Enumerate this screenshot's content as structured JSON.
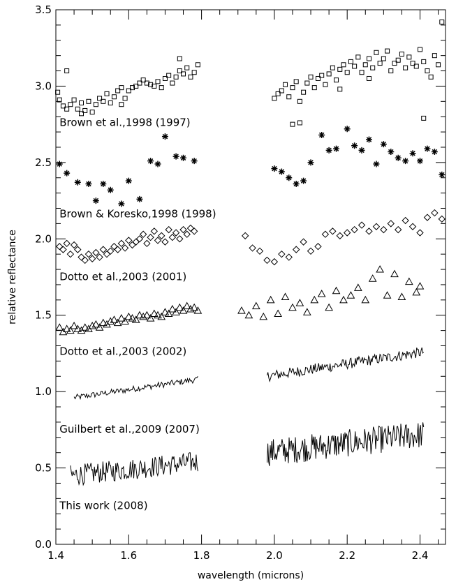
{
  "chart_data": {
    "type": "scatter",
    "title": "",
    "xlabel": "wavelength (microns)",
    "ylabel": "relative reflectance",
    "xlim": [
      1.4,
      2.47
    ],
    "ylim": [
      0.0,
      3.5
    ],
    "grid": false,
    "legend": "none",
    "x_ticks": [
      "1.4",
      "1.6",
      "1.8",
      "2.0",
      "2.2",
      "2.4"
    ],
    "y_ticks": [
      "0.0",
      "0.5",
      "1.0",
      "1.5",
      "2.0",
      "2.5",
      "3.0",
      "3.5"
    ],
    "annotations": [
      {
        "text": "Brown et al.,1998 (1997)",
        "x": 1.41,
        "y": 2.74
      },
      {
        "text": "Brown & Koresko,1998 (1998)",
        "x": 1.41,
        "y": 2.14
      },
      {
        "text": "Dotto et al.,2003 (2001)",
        "x": 1.41,
        "y": 1.73
      },
      {
        "text": "Dotto et al.,2003 (2002)",
        "x": 1.41,
        "y": 1.24
      },
      {
        "text": "Guilbert et al.,2009 (2007)",
        "x": 1.41,
        "y": 0.73
      },
      {
        "text": "This work (2008)",
        "x": 1.41,
        "y": 0.23
      }
    ],
    "series": [
      {
        "marker": "square",
        "x": [
          1.405,
          1.41,
          1.42,
          1.43,
          1.44,
          1.45,
          1.46,
          1.47,
          1.48,
          1.49,
          1.5,
          1.51,
          1.52,
          1.53,
          1.54,
          1.55,
          1.56,
          1.57,
          1.58,
          1.59,
          1.6,
          1.61,
          1.62,
          1.63,
          1.64,
          1.65,
          1.66,
          1.67,
          1.68,
          1.69,
          1.7,
          1.71,
          1.72,
          1.73,
          1.74,
          1.75,
          1.76,
          1.77,
          1.78,
          1.79,
          1.43,
          1.47,
          1.58,
          1.74,
          2.0,
          2.01,
          2.02,
          2.03,
          2.04,
          2.05,
          2.06,
          2.07,
          2.08,
          2.09,
          2.1,
          2.11,
          2.12,
          2.13,
          2.14,
          2.15,
          2.16,
          2.17,
          2.18,
          2.19,
          2.2,
          2.21,
          2.22,
          2.23,
          2.24,
          2.25,
          2.26,
          2.27,
          2.28,
          2.29,
          2.3,
          2.31,
          2.32,
          2.33,
          2.34,
          2.35,
          2.36,
          2.37,
          2.38,
          2.39,
          2.4,
          2.41,
          2.42,
          2.43,
          2.44,
          2.45,
          2.46,
          2.05,
          2.07,
          2.18,
          2.26,
          2.41
        ],
        "y": [
          2.96,
          2.91,
          2.87,
          2.85,
          2.88,
          2.91,
          2.85,
          2.89,
          2.84,
          2.9,
          2.83,
          2.88,
          2.92,
          2.9,
          2.95,
          2.89,
          2.93,
          2.97,
          2.99,
          2.92,
          2.97,
          2.99,
          3.0,
          3.02,
          3.04,
          3.02,
          3.01,
          3.0,
          3.03,
          2.99,
          3.05,
          3.07,
          3.02,
          3.06,
          3.1,
          3.08,
          3.12,
          3.06,
          3.09,
          3.14,
          3.1,
          2.82,
          2.88,
          3.18,
          2.92,
          2.95,
          2.97,
          3.01,
          2.93,
          2.99,
          3.03,
          2.9,
          2.96,
          3.02,
          3.06,
          2.99,
          3.05,
          3.07,
          3.01,
          3.08,
          3.12,
          3.04,
          3.11,
          3.14,
          3.09,
          3.16,
          3.13,
          3.19,
          3.09,
          3.14,
          3.18,
          3.12,
          3.22,
          3.15,
          3.18,
          3.23,
          3.1,
          3.15,
          3.17,
          3.21,
          3.12,
          3.19,
          3.15,
          3.13,
          3.24,
          3.16,
          3.1,
          3.06,
          3.2,
          3.14,
          3.42,
          2.75,
          2.76,
          2.98,
          3.05,
          2.79
        ]
      },
      {
        "marker": "asterisk",
        "x": [
          1.41,
          1.43,
          1.46,
          1.49,
          1.51,
          1.53,
          1.55,
          1.58,
          1.6,
          1.63,
          1.66,
          1.68,
          1.7,
          1.73,
          1.75,
          1.78,
          2.0,
          2.02,
          2.04,
          2.06,
          2.08,
          2.1,
          2.13,
          2.15,
          2.17,
          2.2,
          2.22,
          2.24,
          2.26,
          2.28,
          2.3,
          2.32,
          2.34,
          2.36,
          2.38,
          2.4,
          2.42,
          2.44,
          2.46
        ],
        "y": [
          2.49,
          2.43,
          2.37,
          2.36,
          2.25,
          2.36,
          2.32,
          2.23,
          2.38,
          2.26,
          2.51,
          2.49,
          2.67,
          2.54,
          2.53,
          2.51,
          2.46,
          2.44,
          2.4,
          2.36,
          2.38,
          2.5,
          2.68,
          2.58,
          2.59,
          2.72,
          2.61,
          2.58,
          2.65,
          2.49,
          2.62,
          2.57,
          2.53,
          2.51,
          2.56,
          2.51,
          2.59,
          2.57,
          2.42
        ]
      },
      {
        "marker": "diamond",
        "x": [
          1.41,
          1.42,
          1.43,
          1.44,
          1.45,
          1.46,
          1.47,
          1.48,
          1.49,
          1.5,
          1.51,
          1.52,
          1.53,
          1.54,
          1.55,
          1.56,
          1.57,
          1.58,
          1.59,
          1.6,
          1.61,
          1.62,
          1.63,
          1.64,
          1.65,
          1.66,
          1.67,
          1.68,
          1.69,
          1.7,
          1.71,
          1.72,
          1.73,
          1.74,
          1.75,
          1.76,
          1.77,
          1.78,
          1.92,
          1.94,
          1.96,
          1.98,
          2.0,
          2.02,
          2.04,
          2.06,
          2.08,
          2.1,
          2.12,
          2.14,
          2.16,
          2.18,
          2.2,
          2.22,
          2.24,
          2.26,
          2.28,
          2.3,
          2.32,
          2.34,
          2.36,
          2.38,
          2.4,
          2.42,
          2.44,
          2.46
        ],
        "y": [
          1.95,
          1.93,
          1.97,
          1.9,
          1.96,
          1.93,
          1.88,
          1.86,
          1.9,
          1.87,
          1.91,
          1.88,
          1.93,
          1.9,
          1.92,
          1.95,
          1.93,
          1.97,
          1.94,
          1.99,
          1.96,
          1.98,
          2.0,
          2.03,
          1.97,
          2.01,
          2.05,
          1.99,
          2.02,
          1.98,
          2.06,
          2.01,
          2.04,
          2.0,
          2.06,
          2.03,
          2.07,
          2.05,
          2.02,
          1.94,
          1.92,
          1.86,
          1.85,
          1.9,
          1.88,
          1.93,
          1.98,
          1.92,
          1.95,
          2.03,
          2.05,
          2.02,
          2.04,
          2.06,
          2.09,
          2.05,
          2.08,
          2.06,
          2.1,
          2.06,
          2.12,
          2.08,
          2.04,
          2.14,
          2.17,
          2.13
        ]
      },
      {
        "marker": "triangle",
        "x": [
          1.41,
          1.42,
          1.43,
          1.44,
          1.45,
          1.46,
          1.47,
          1.48,
          1.49,
          1.5,
          1.51,
          1.52,
          1.53,
          1.54,
          1.55,
          1.56,
          1.57,
          1.58,
          1.59,
          1.6,
          1.61,
          1.62,
          1.63,
          1.64,
          1.65,
          1.66,
          1.67,
          1.68,
          1.69,
          1.7,
          1.71,
          1.72,
          1.73,
          1.74,
          1.75,
          1.76,
          1.77,
          1.78,
          1.79,
          1.91,
          1.93,
          1.95,
          1.97,
          1.99,
          2.01,
          2.03,
          2.05,
          2.07,
          2.09,
          2.11,
          2.13,
          2.15,
          2.17,
          2.19,
          2.21,
          2.23,
          2.25,
          2.27,
          2.29,
          2.31,
          2.33,
          2.35,
          2.37,
          2.39,
          2.4
        ],
        "y": [
          1.42,
          1.39,
          1.41,
          1.4,
          1.43,
          1.41,
          1.4,
          1.42,
          1.41,
          1.43,
          1.44,
          1.42,
          1.45,
          1.44,
          1.46,
          1.47,
          1.45,
          1.48,
          1.46,
          1.49,
          1.48,
          1.47,
          1.5,
          1.49,
          1.5,
          1.48,
          1.51,
          1.5,
          1.49,
          1.52,
          1.51,
          1.54,
          1.52,
          1.55,
          1.53,
          1.56,
          1.54,
          1.55,
          1.53,
          1.53,
          1.5,
          1.56,
          1.49,
          1.6,
          1.51,
          1.62,
          1.55,
          1.58,
          1.52,
          1.6,
          1.64,
          1.55,
          1.66,
          1.6,
          1.63,
          1.68,
          1.6,
          1.74,
          1.8,
          1.63,
          1.77,
          1.62,
          1.72,
          1.65,
          1.69
        ]
      },
      {
        "marker": "line",
        "segments": [
          {
            "x_start": 1.45,
            "x_end": 1.79,
            "y_start": 0.96,
            "y_end": 1.08,
            "points": 120,
            "noise": 0.02
          },
          {
            "x_start": 1.98,
            "x_end": 2.41,
            "y_start": 1.1,
            "y_end": 1.26,
            "points": 180,
            "noise": 0.035
          }
        ]
      },
      {
        "marker": "line",
        "segments": [
          {
            "x_start": 1.44,
            "x_end": 1.79,
            "y_start": 0.45,
            "y_end": 0.54,
            "points": 150,
            "noise": 0.07
          },
          {
            "x_start": 1.98,
            "x_end": 2.41,
            "y_start": 0.6,
            "y_end": 0.72,
            "points": 200,
            "noise": 0.09
          }
        ]
      }
    ]
  }
}
